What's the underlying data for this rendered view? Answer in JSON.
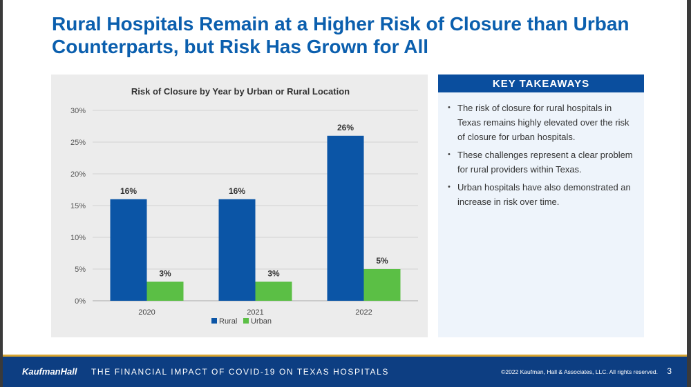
{
  "slide": {
    "title_line1": "Rural Hospitals Remain at a Higher Risk of Closure than Urban",
    "title_line2": "Counterparts, but Risk Has Grown for All"
  },
  "key_takeaways": {
    "header": "KEY TAKEAWAYS",
    "items": [
      "The risk of closure for rural hospitals in Texas remains highly elevated over the risk of closure for urban hospitals.",
      "These challenges represent a clear problem for rural providers within Texas.",
      "Urban hospitals have also demonstrated an increase in risk over time."
    ],
    "bullet_glyph": "•"
  },
  "footer": {
    "logo": "KaufmanHall",
    "deck_title": "THE FINANCIAL IMPACT OF COVID-19 ON TEXAS HOSPITALS",
    "copyright": "©2022 Kaufman, Hall & Associates, LLC. All rights reserved.",
    "page_number": "3"
  },
  "colors": {
    "title": "#0b5fae",
    "rural": "#0b55a6",
    "urban": "#5bbf45",
    "header_bg": "#0a4e9e",
    "footer_bg": "#0d3e82",
    "footer_rule": "#d7a531"
  },
  "chart_data": {
    "type": "bar",
    "title": "Risk of Closure by Year by Urban or Rural Location",
    "categories": [
      "2020",
      "2021",
      "2022"
    ],
    "series": [
      {
        "name": "Rural",
        "values": [
          16,
          16,
          26
        ],
        "labels": [
          "16%",
          "16%",
          "26%"
        ],
        "color": "#0b55a6"
      },
      {
        "name": "Urban",
        "values": [
          3,
          3,
          5
        ],
        "labels": [
          "3%",
          "3%",
          "5%"
        ],
        "color": "#5bbf45"
      }
    ],
    "ylim": [
      0,
      30
    ],
    "yticks": [
      0,
      5,
      10,
      15,
      20,
      25,
      30
    ],
    "ytick_labels": [
      "0%",
      "5%",
      "10%",
      "15%",
      "20%",
      "25%",
      "30%"
    ],
    "grid": true,
    "legend_position": "bottom"
  }
}
